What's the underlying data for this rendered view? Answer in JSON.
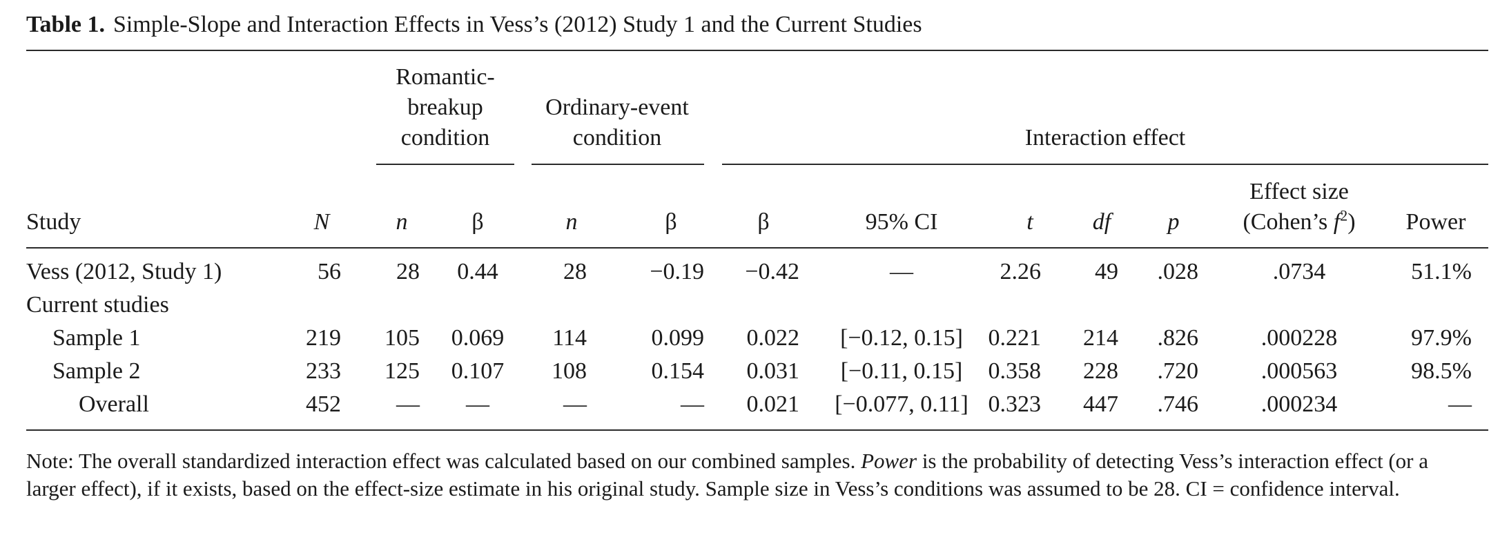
{
  "caption": {
    "label": "Table 1.",
    "text": "Simple-Slope and Interaction Effects in Vess’s (2012) Study 1 and the Current Studies"
  },
  "groups": {
    "romantic": [
      "Romantic-",
      "breakup",
      "condition"
    ],
    "ordinary": [
      "Ordinary-event",
      "condition"
    ],
    "interaction": "Interaction effect"
  },
  "columns": {
    "study": "Study",
    "N": "N",
    "rb_n": "n",
    "rb_beta": "β",
    "oe_n": "n",
    "oe_beta": "β",
    "int_beta": "β",
    "ci": "95% CI",
    "t": "t",
    "df": "df",
    "p": "p",
    "effect_line1": "Effect size",
    "effect_line2_pre": "(Cohen’s ",
    "effect_f": "f",
    "effect_sup": "2",
    "effect_post": ")",
    "power": "Power"
  },
  "rows": [
    {
      "study": "Vess (2012, Study 1)",
      "N": "56",
      "rb_n": "28",
      "rb_beta": "0.44",
      "oe_n": "28",
      "oe_beta": "−0.19",
      "int_beta": "−0.42",
      "ci": "—",
      "t": "2.26",
      "df": "49",
      "p": ".028",
      "effect": ".0734",
      "power": "51.1%"
    },
    {
      "study": "Current studies",
      "N": "",
      "rb_n": "",
      "rb_beta": "",
      "oe_n": "",
      "oe_beta": "",
      "int_beta": "",
      "ci": "",
      "t": "",
      "df": "",
      "p": "",
      "effect": "",
      "power": ""
    },
    {
      "study": "Sample 1",
      "N": "219",
      "rb_n": "105",
      "rb_beta": "0.069",
      "oe_n": "114",
      "oe_beta": "0.099",
      "int_beta": "0.022",
      "ci": "[−0.12, 0.15]",
      "t": "0.221",
      "df": "214",
      "p": ".826",
      "effect": ".000228",
      "power": "97.9%"
    },
    {
      "study": "Sample 2",
      "N": "233",
      "rb_n": "125",
      "rb_beta": "0.107",
      "oe_n": "108",
      "oe_beta": "0.154",
      "int_beta": "0.031",
      "ci": "[−0.11, 0.15]",
      "t": "0.358",
      "df": "228",
      "p": ".720",
      "effect": ".000563",
      "power": "98.5%"
    },
    {
      "study": "Overall",
      "N": "452",
      "rb_n": "—",
      "rb_beta": "—",
      "oe_n": "—",
      "oe_beta": "—",
      "int_beta": "0.021",
      "ci": "[−0.077, 0.11]",
      "t": "0.323",
      "df": "447",
      "p": ".746",
      "effect": ".000234",
      "power": "—"
    }
  ],
  "note": {
    "part1": "Note: The overall standardized interaction effect was calculated based on our combined samples. ",
    "power_word": "Power",
    "part2": " is the probability of detecting Vess’s interaction effect (or a larger effect), if it exists, based on the effect-size estimate in his original study. Sample size in Vess’s conditions was assumed to be 28. CI = confidence interval."
  }
}
